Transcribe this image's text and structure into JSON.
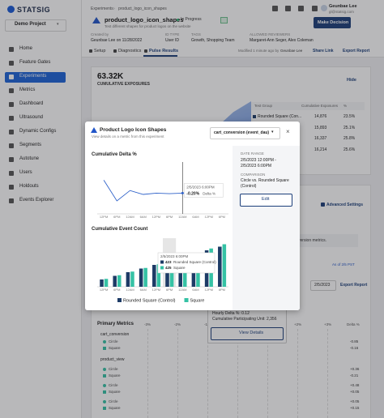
{
  "sidebar": {
    "logo": "STATSIG",
    "project": "Demo Project",
    "nav": [
      "Home",
      "Feature Gates",
      "Experiments",
      "Metrics",
      "Dashboard",
      "Ultrasound",
      "Dynamic Configs",
      "Segments",
      "Autotune",
      "Users",
      "Holdouts",
      "Events Explorer"
    ],
    "active": 2
  },
  "header": {
    "breadcrumb": [
      "Experiments",
      "product_logo_icon_shapes"
    ],
    "title": "product_logo_icon_shapes",
    "status": "In Progress",
    "description": "Test different shapes for product logos on the website",
    "user_name": "Geunbae Lee",
    "user_email": "gl@statsig.com",
    "decision_button": "Make Decision",
    "meta": [
      {
        "label": "Created by",
        "value": "Geunbae Lee on 11/28/2022"
      },
      {
        "label": "ID TYPE",
        "value": "User ID"
      },
      {
        "label": "TAGS",
        "value": "Growth, Shopping Team"
      },
      {
        "label": "ALLOWED REVIEWERS",
        "value": "Margaret-Ann Seger, Alex Coleman"
      }
    ],
    "tabs": [
      "Setup",
      "Diagnostics",
      "Pulse Results"
    ],
    "active_tab": 2,
    "modified": "Modified 1 minute ago by",
    "modified_by": "Geunbae Lee",
    "share": "Share Link",
    "export": "Export Report"
  },
  "exposures": {
    "total": "63.32K",
    "label": "CUMULATIVE EXPOSURES",
    "hide": "Hide",
    "columns": [
      "Test Group",
      "Cumulative Exposures",
      "%"
    ],
    "rows": [
      {
        "group": "Rounded Square (Con...",
        "exposures": "14,876",
        "pct": "23.5%"
      },
      {
        "exposures": "15,893",
        "pct": "25.1%"
      },
      {
        "exposures": "16,337",
        "pct": "25.8%"
      },
      {
        "exposures": "16,214",
        "pct": "25.6%"
      }
    ]
  },
  "results": {
    "advanced": "Advanced Settings",
    "notice": "version metrics.",
    "as_of": "As of 2/5 PST",
    "date": "2/5/2023",
    "export": "Export Report",
    "title": "Primary Metrics",
    "axis": [
      "-3%",
      "-2%",
      "-1%",
      "0%",
      "+1%",
      "+2%",
      "+3%"
    ],
    "delta_header": "Delta %",
    "metrics": [
      {
        "name": "cart_conversion",
        "groups": [
          {
            "name": "Circle",
            "delta": "-0.85"
          },
          {
            "name": "Square",
            "delta": "-0.16"
          }
        ]
      },
      {
        "name": "product_view",
        "groups": [
          {
            "name": "Circle",
            "delta": "+0.36"
          },
          {
            "name": "Square",
            "delta": "-0.21"
          },
          {
            "name": "Circle",
            "delta": "+0.48"
          },
          {
            "name": "Square",
            "delta": "+0.05"
          },
          {
            "name": "Circle",
            "delta": "+0.05"
          },
          {
            "name": "Square",
            "delta": "+0.15"
          }
        ]
      }
    ],
    "hover": {
      "hourly": "Hourly Delta %: 0.12",
      "cumulative": "Cumulative Participating Unit: 2,356",
      "button": "View Details"
    }
  },
  "modal": {
    "title": "Product Logo Icon Shapes",
    "subtitle": "View details on a metric from this experiment",
    "metric": "cart_conversion (event_dau)",
    "date_range_label": "DATE RANGE",
    "date_range": [
      "2/5/2023 12:00PM -",
      "2/5/2023 6:00PM"
    ],
    "comparison_label": "COMPARISON",
    "comparison": [
      "Circle vs. Rounded Square",
      "(Control)"
    ],
    "edit": "Edit"
  },
  "chart_data": [
    {
      "type": "line",
      "title": "Cumulative Delta %",
      "categories": [
        "12PM",
        "6PM",
        "12AM",
        "6AM",
        "12PM",
        "6PM",
        "12AM",
        "6AM",
        "12PM",
        "6PM"
      ],
      "values": [
        0.3,
        -0.5,
        -0.1,
        -0.25,
        -0.2,
        -0.22,
        -0.2,
        -0.18,
        -0.2,
        -0.2
      ],
      "color": "#2f62c9",
      "ylim": [
        -1,
        1
      ],
      "tooltip": {
        "date": "2/5/2023 6:00PM",
        "value_label": "-0.20%",
        "label": "Delta %"
      }
    },
    {
      "type": "bar",
      "title": "Cumulative Event Count",
      "categories": [
        "12PM",
        "6PM",
        "12AM",
        "6AM",
        "12PM",
        "6PM",
        "12AM",
        "6AM",
        "12PM",
        "6PM"
      ],
      "series": [
        {
          "name": "Rounded Square (Control)",
          "color": "#1d3b66",
          "values": [
            120,
            180,
            240,
            300,
            360,
            423,
            480,
            540,
            600,
            660
          ]
        },
        {
          "name": "Square",
          "color": "#35c2a5",
          "values": [
            130,
            190,
            250,
            310,
            370,
            425,
            490,
            560,
            630,
            700
          ]
        }
      ],
      "ylim": [
        0,
        800
      ],
      "tooltip": {
        "date": "2/5/2023 6:00PM"
      }
    }
  ]
}
